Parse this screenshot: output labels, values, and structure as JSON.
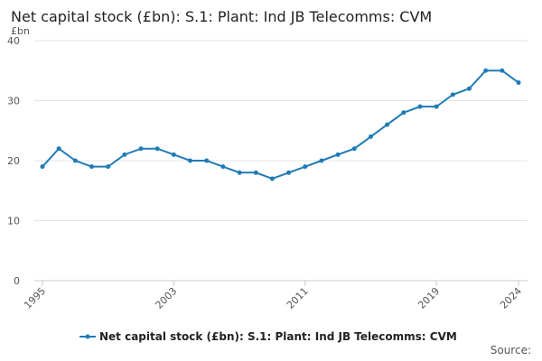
{
  "chart_data": {
    "type": "line",
    "title": "Net capital stock (£bn): S.1: Plant: Ind JB Telecomms: CVM",
    "y_unit": "£bn",
    "source": "Source:",
    "x": [
      1995,
      1996,
      1997,
      1998,
      1999,
      2000,
      2001,
      2002,
      2003,
      2004,
      2005,
      2006,
      2007,
      2008,
      2009,
      2010,
      2011,
      2012,
      2013,
      2014,
      2015,
      2016,
      2017,
      2018,
      2019,
      2020,
      2021,
      2022,
      2023,
      2024
    ],
    "xlim": [
      1995,
      2024
    ],
    "xticks": [
      1995,
      2003,
      2011,
      2019,
      2024
    ],
    "ylim": [
      0,
      40
    ],
    "yticks": [
      0,
      10,
      20,
      30,
      40
    ],
    "grid": true,
    "series": [
      {
        "name": "Net capital stock (£bn): S.1: Plant: Ind JB Telecomms: CVM",
        "color": "#1f7bb6",
        "values": [
          19,
          22,
          20,
          19,
          19,
          21,
          22,
          22,
          21,
          20,
          20,
          19,
          18,
          18,
          17,
          18,
          19,
          20,
          21,
          22,
          24,
          26,
          28,
          29,
          29,
          31,
          32,
          35,
          35,
          33
        ]
      }
    ]
  }
}
